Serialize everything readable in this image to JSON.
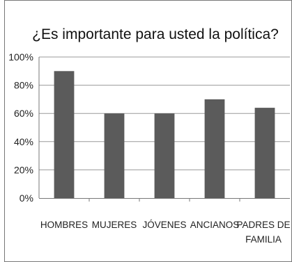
{
  "chart_data": {
    "type": "bar",
    "title": "¿Es importante para usted la política?",
    "categories": [
      "HOMBRES",
      "MUJERES",
      "JÓVENES",
      "ANCIANOS",
      "PADRES DE FAMILIA"
    ],
    "category_label_lines": [
      [
        "HOMBRES"
      ],
      [
        "MUJERES"
      ],
      [
        "JÓVENES"
      ],
      [
        "ANCIANOS"
      ],
      [
        "PADRES DE",
        "FAMILIA"
      ]
    ],
    "values": [
      0.9,
      0.6,
      0.6,
      0.7,
      0.64
    ],
    "ylim": [
      0,
      1
    ],
    "y_ticks": [
      0,
      0.2,
      0.4,
      0.6,
      0.8,
      1.0
    ],
    "y_tick_labels": [
      "0%",
      "20%",
      "40%",
      "60%",
      "80%",
      "100%"
    ],
    "grid": true,
    "legend": "none",
    "bar_color": "#5b5b5b"
  }
}
